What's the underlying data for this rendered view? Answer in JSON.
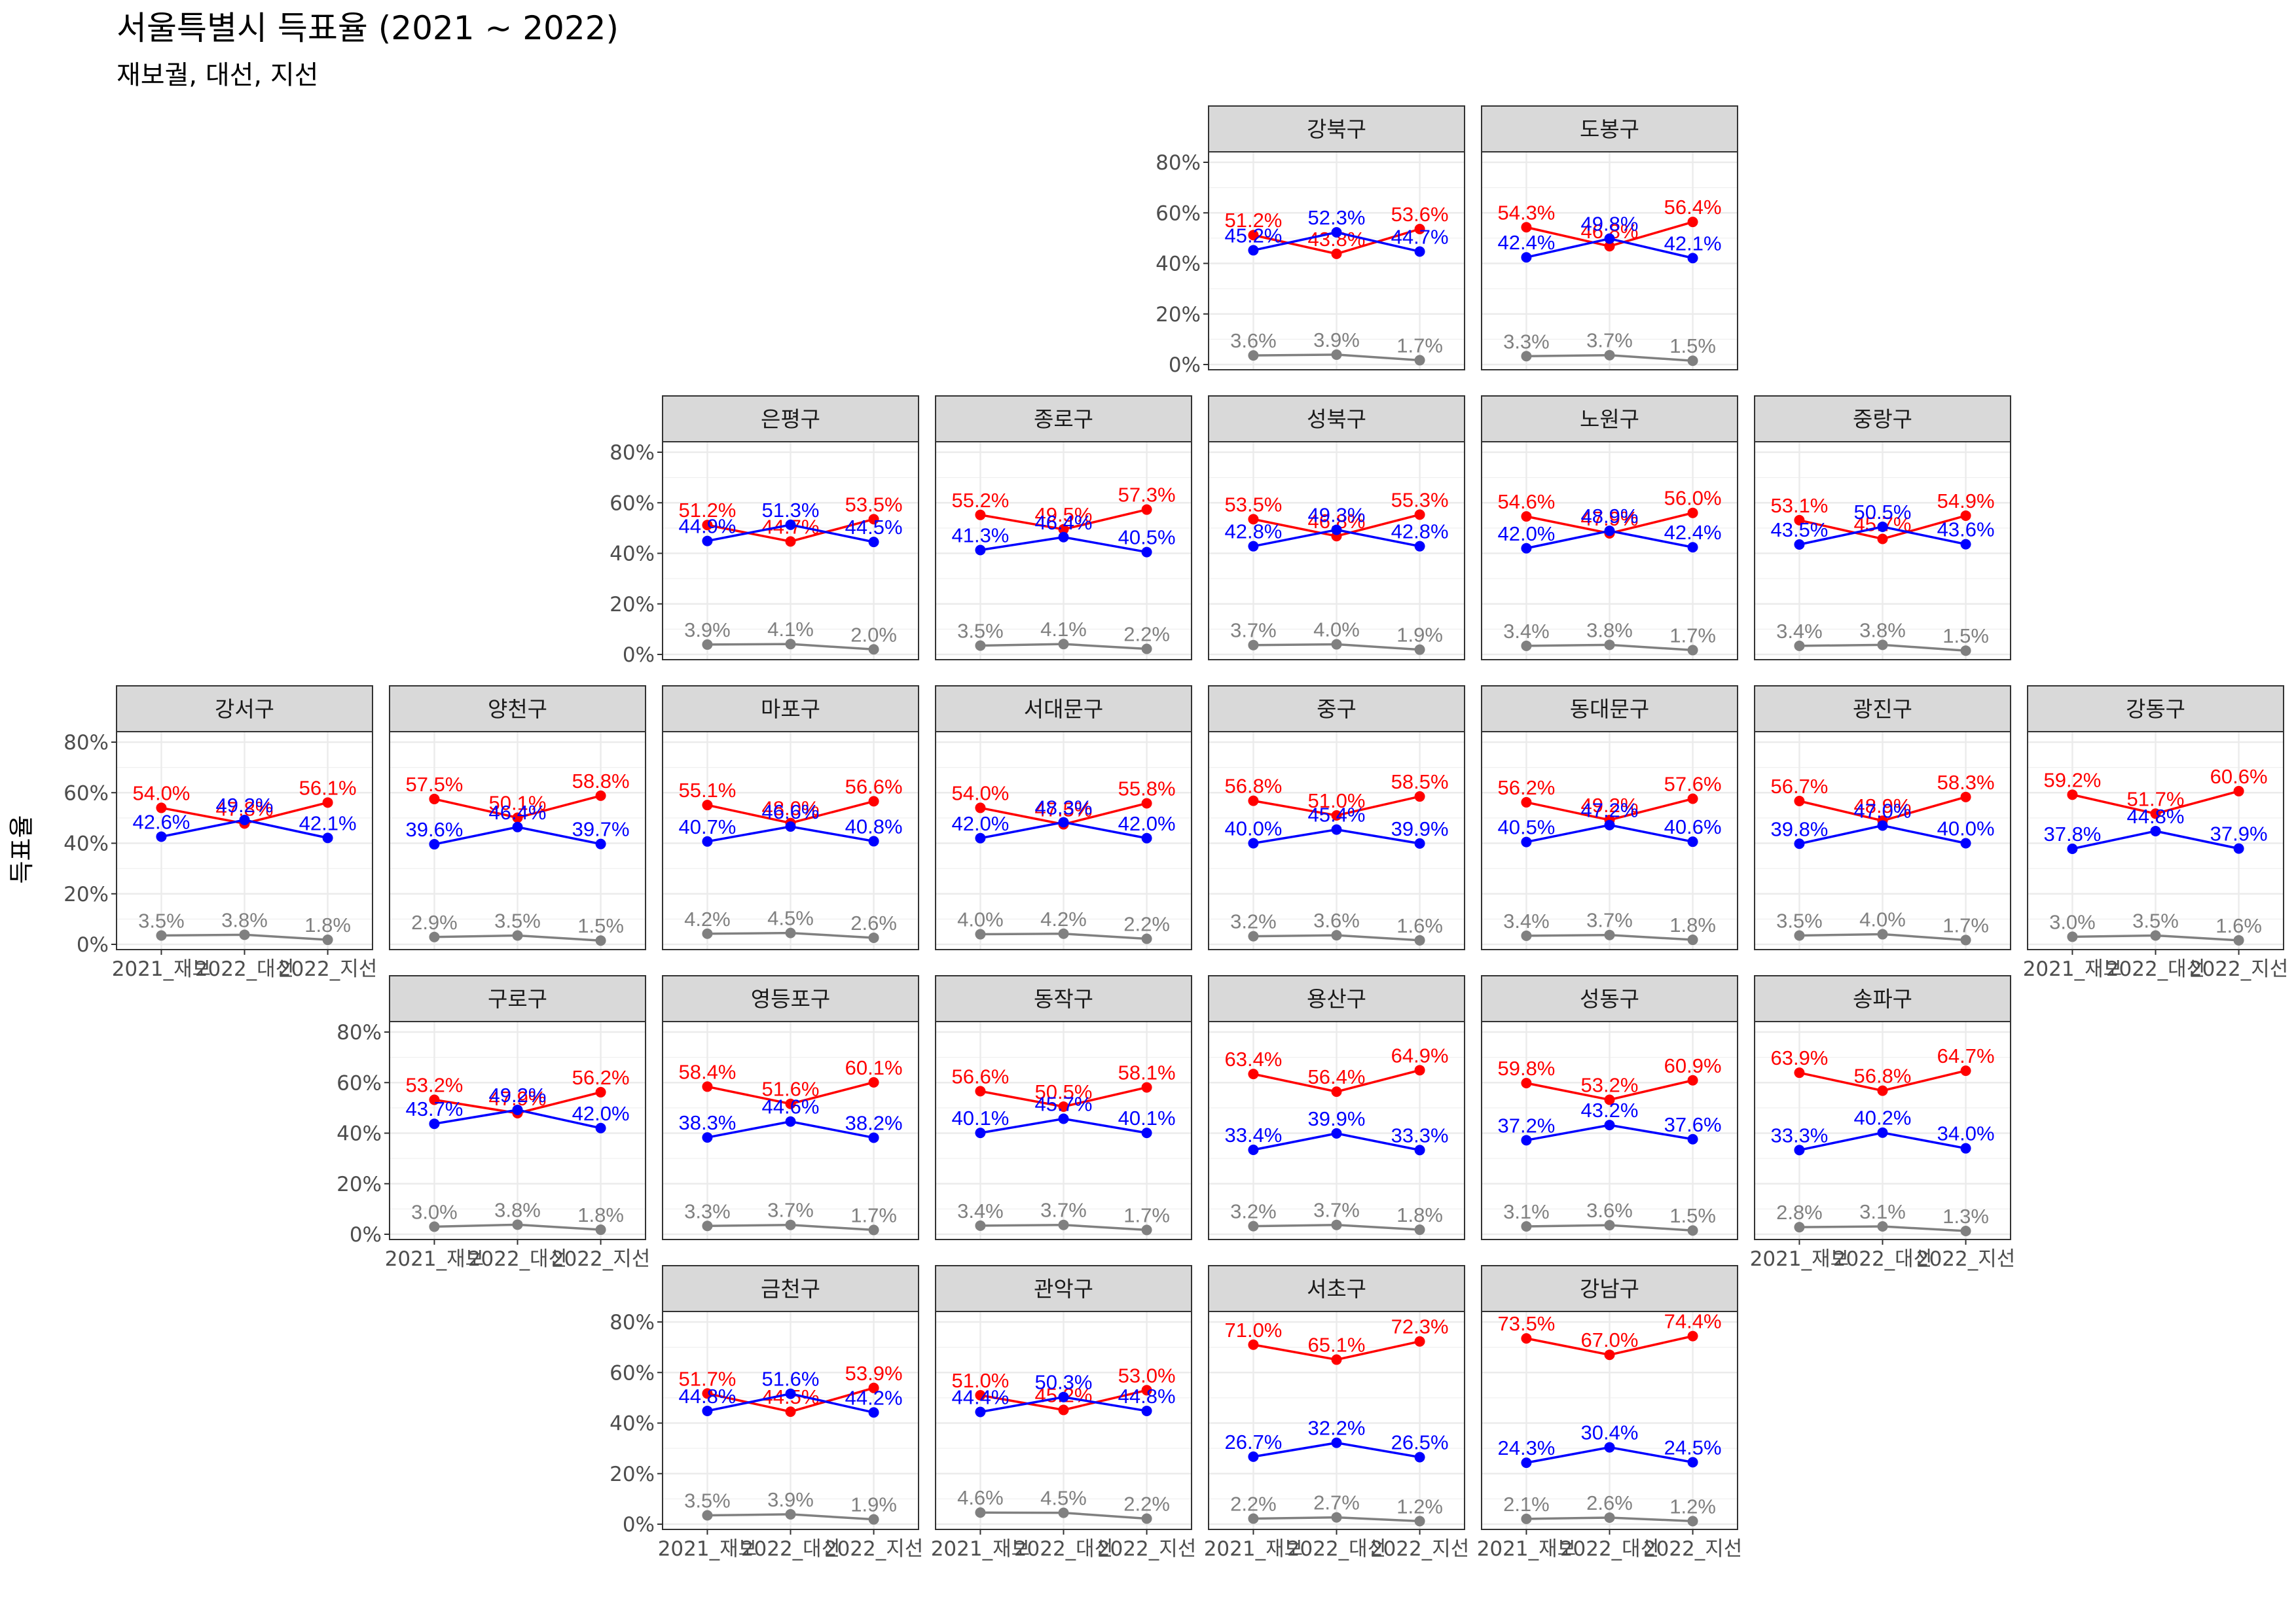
{
  "chart_data": {
    "type": "line",
    "title": "서울특별시 득표율 (2021 ~ 2022)",
    "subtitle": "재보궐, 대선, 지선",
    "ylabel": "득표율",
    "xlabel": "",
    "x": [
      "2021_재보",
      "2022_대선",
      "2022_지선"
    ],
    "ylim": [
      0,
      0.8
    ],
    "yticks": [
      "0%",
      "20%",
      "40%",
      "60%",
      "80%"
    ],
    "grid": true,
    "colors": {
      "red": "#ff0000",
      "blue": "#0000ff",
      "gray": "#808080",
      "strip": "#d9d9d9"
    },
    "series_colors": [
      "#ff0000",
      "#0000ff",
      "#808080"
    ],
    "facets": [
      {
        "name": "강북구",
        "series": [
          [
            51.2,
            43.8,
            53.6
          ],
          [
            45.2,
            52.3,
            44.7
          ],
          [
            3.6,
            3.9,
            1.7
          ]
        ]
      },
      {
        "name": "도봉구",
        "series": [
          [
            54.3,
            46.8,
            56.4
          ],
          [
            42.4,
            49.8,
            42.1
          ],
          [
            3.3,
            3.7,
            1.5
          ]
        ]
      },
      {
        "name": "은평구",
        "series": [
          [
            51.2,
            44.7,
            53.5
          ],
          [
            44.9,
            51.3,
            44.5
          ],
          [
            3.9,
            4.1,
            2.0
          ]
        ]
      },
      {
        "name": "종로구",
        "series": [
          [
            55.2,
            49.5,
            57.3
          ],
          [
            41.3,
            46.4,
            40.5
          ],
          [
            3.5,
            4.1,
            2.2
          ]
        ]
      },
      {
        "name": "성북구",
        "series": [
          [
            53.5,
            46.8,
            55.3
          ],
          [
            42.8,
            49.3,
            42.8
          ],
          [
            3.7,
            4.0,
            1.9
          ]
        ]
      },
      {
        "name": "노원구",
        "series": [
          [
            54.6,
            47.9,
            56.0
          ],
          [
            42.0,
            48.9,
            42.4
          ],
          [
            3.4,
            3.8,
            1.7
          ]
        ]
      },
      {
        "name": "중랑구",
        "series": [
          [
            53.1,
            45.7,
            54.9
          ],
          [
            43.5,
            50.5,
            43.6
          ],
          [
            3.4,
            3.8,
            1.5
          ]
        ]
      },
      {
        "name": "강서구",
        "series": [
          [
            54.0,
            47.8,
            56.1
          ],
          [
            42.6,
            49.2,
            42.1
          ],
          [
            3.5,
            3.8,
            1.8
          ]
        ]
      },
      {
        "name": "양천구",
        "series": [
          [
            57.5,
            50.1,
            58.8
          ],
          [
            39.6,
            46.4,
            39.7
          ],
          [
            2.9,
            3.5,
            1.5
          ]
        ]
      },
      {
        "name": "마포구",
        "series": [
          [
            55.1,
            48.0,
            56.6
          ],
          [
            40.7,
            46.6,
            40.8
          ],
          [
            4.2,
            4.5,
            2.6
          ]
        ]
      },
      {
        "name": "서대문구",
        "series": [
          [
            54.0,
            47.5,
            55.8
          ],
          [
            42.0,
            48.3,
            42.0
          ],
          [
            4.0,
            4.2,
            2.2
          ]
        ]
      },
      {
        "name": "중구",
        "series": [
          [
            56.8,
            51.0,
            58.5
          ],
          [
            40.0,
            45.4,
            39.9
          ],
          [
            3.2,
            3.6,
            1.6
          ]
        ]
      },
      {
        "name": "동대문구",
        "series": [
          [
            56.2,
            49.2,
            57.6
          ],
          [
            40.5,
            47.2,
            40.6
          ],
          [
            3.4,
            3.7,
            1.8
          ]
        ]
      },
      {
        "name": "광진구",
        "series": [
          [
            56.7,
            48.9,
            58.3
          ],
          [
            39.8,
            47.0,
            40.0
          ],
          [
            3.5,
            4.0,
            1.7
          ]
        ]
      },
      {
        "name": "강동구",
        "series": [
          [
            59.2,
            51.7,
            60.6
          ],
          [
            37.8,
            44.8,
            37.9
          ],
          [
            3.0,
            3.5,
            1.6
          ]
        ]
      },
      {
        "name": "구로구",
        "series": [
          [
            53.2,
            47.9,
            56.2
          ],
          [
            43.7,
            49.2,
            42.0
          ],
          [
            3.0,
            3.8,
            1.8
          ]
        ]
      },
      {
        "name": "영등포구",
        "series": [
          [
            58.4,
            51.6,
            60.1
          ],
          [
            38.3,
            44.6,
            38.2
          ],
          [
            3.3,
            3.7,
            1.7
          ]
        ]
      },
      {
        "name": "동작구",
        "series": [
          [
            56.6,
            50.5,
            58.1
          ],
          [
            40.1,
            45.7,
            40.1
          ],
          [
            3.4,
            3.7,
            1.7
          ]
        ]
      },
      {
        "name": "용산구",
        "series": [
          [
            63.4,
            56.4,
            64.9
          ],
          [
            33.4,
            39.9,
            33.3
          ],
          [
            3.2,
            3.7,
            1.8
          ]
        ]
      },
      {
        "name": "성동구",
        "series": [
          [
            59.8,
            53.2,
            60.9
          ],
          [
            37.2,
            43.2,
            37.6
          ],
          [
            3.1,
            3.6,
            1.5
          ]
        ]
      },
      {
        "name": "송파구",
        "series": [
          [
            63.9,
            56.8,
            64.7
          ],
          [
            33.3,
            40.2,
            34.0
          ],
          [
            2.8,
            3.1,
            1.3
          ]
        ]
      },
      {
        "name": "금천구",
        "series": [
          [
            51.7,
            44.5,
            53.9
          ],
          [
            44.8,
            51.6,
            44.2
          ],
          [
            3.5,
            3.9,
            1.9
          ]
        ]
      },
      {
        "name": "관악구",
        "series": [
          [
            51.0,
            45.2,
            53.0
          ],
          [
            44.4,
            50.3,
            44.8
          ],
          [
            4.6,
            4.5,
            2.2
          ]
        ]
      },
      {
        "name": "서초구",
        "series": [
          [
            71.0,
            65.1,
            72.3
          ],
          [
            26.7,
            32.2,
            26.5
          ],
          [
            2.2,
            2.7,
            1.2
          ]
        ]
      },
      {
        "name": "강남구",
        "series": [
          [
            73.5,
            67.0,
            74.4
          ],
          [
            24.3,
            30.4,
            24.5
          ],
          [
            2.1,
            2.6,
            1.2
          ]
        ]
      }
    ]
  }
}
